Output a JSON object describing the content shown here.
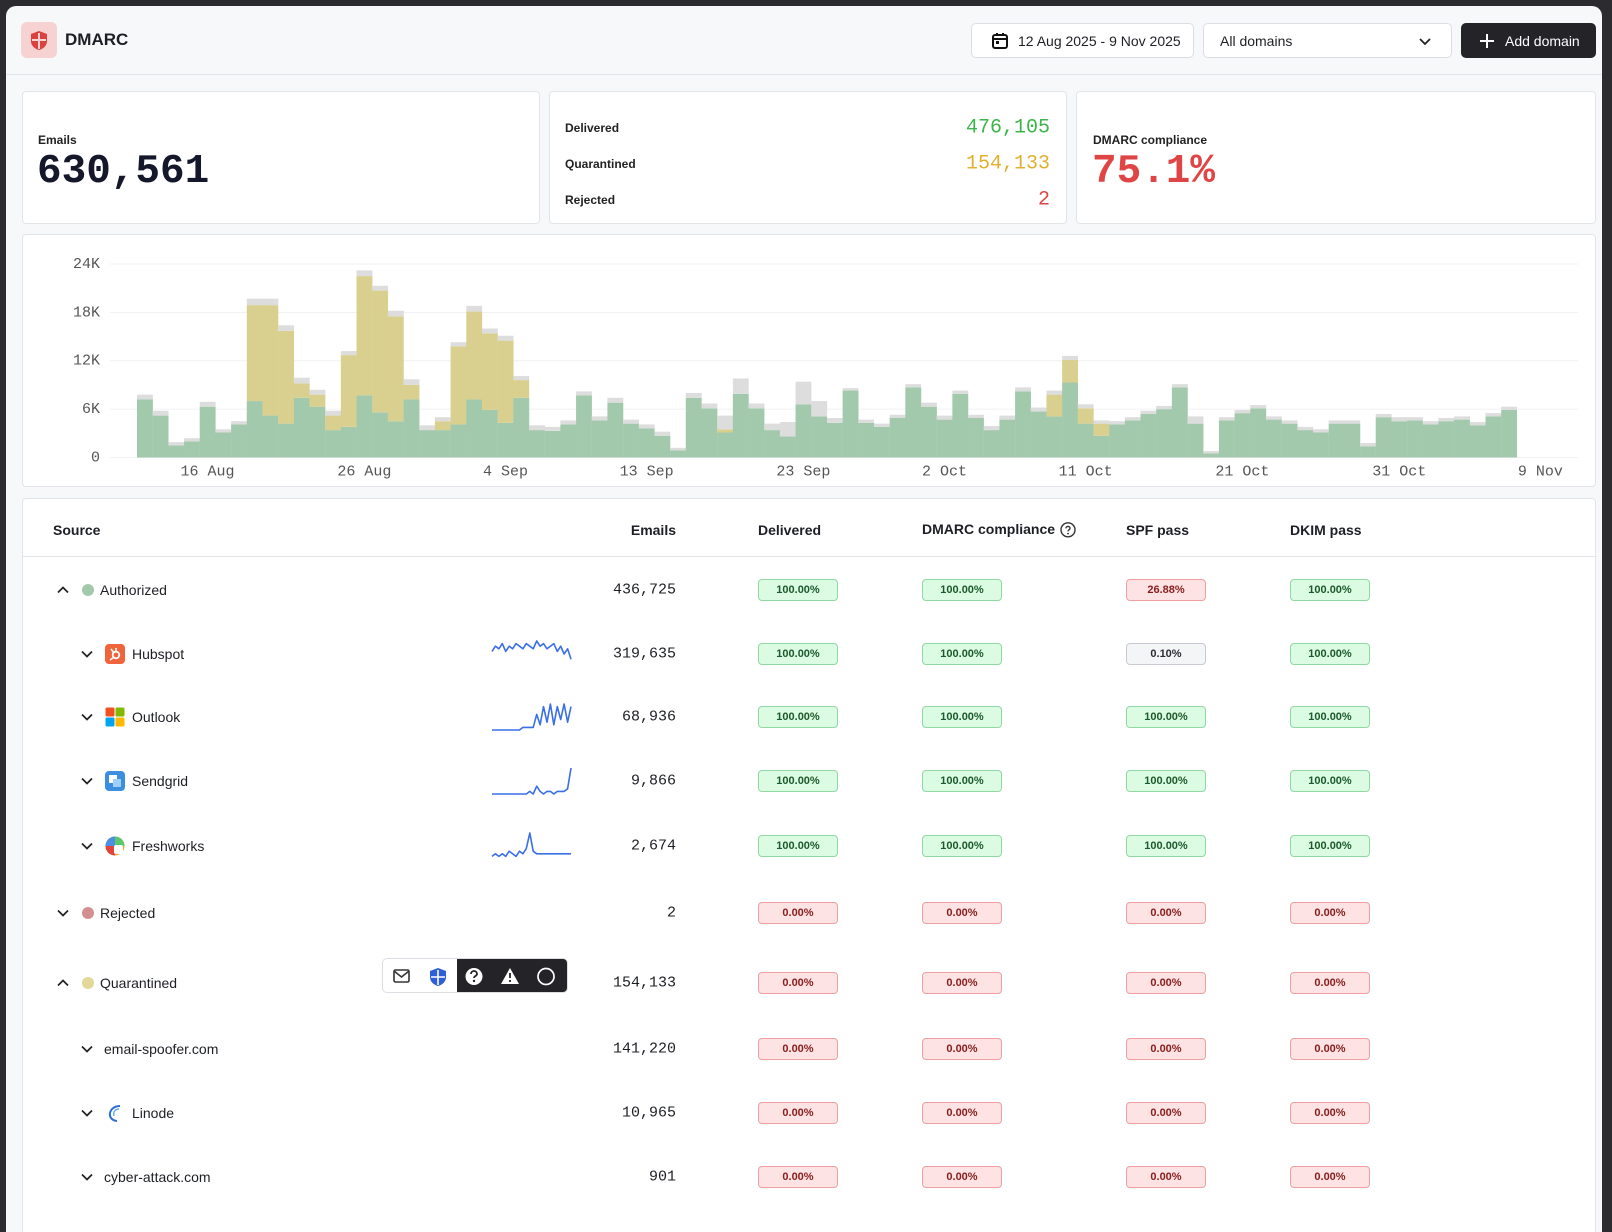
{
  "header": {
    "title": "DMARC",
    "date_range": "12 Aug 2025 - 9 Nov 2025",
    "domain_select": "All domains",
    "add_button": "Add domain"
  },
  "stats": {
    "emails": {
      "label": "Emails",
      "value": "630,561"
    },
    "delivered": {
      "label": "Delivered",
      "value": "476,105",
      "color": "#3cb54a"
    },
    "quarantined": {
      "label": "Quarantined",
      "value": "154,133",
      "color": "#e0b030"
    },
    "rejected": {
      "label": "Rejected",
      "value": "2",
      "color": "#e04545"
    },
    "compliance": {
      "label": "DMARC compliance",
      "value": "75.1%",
      "color": "#e04545"
    }
  },
  "chart_data": {
    "type": "bar",
    "stacked": true,
    "grid": true,
    "categories": [
      null,
      null,
      null,
      null,
      "16 Aug",
      null,
      null,
      null,
      null,
      null,
      null,
      null,
      null,
      null,
      "26 Aug",
      null,
      null,
      null,
      null,
      null,
      null,
      null,
      null,
      "4 Sep",
      null,
      null,
      null,
      null,
      null,
      null,
      null,
      null,
      "13 Sep",
      null,
      null,
      null,
      null,
      null,
      null,
      null,
      null,
      null,
      "23 Sep",
      null,
      null,
      null,
      null,
      null,
      null,
      null,
      null,
      "2 Oct",
      null,
      null,
      null,
      null,
      null,
      null,
      null,
      null,
      "11 Oct",
      null,
      null,
      null,
      null,
      null,
      null,
      null,
      null,
      null,
      "21 Oct",
      null,
      null,
      null,
      null,
      null,
      null,
      null,
      null,
      null,
      "31 Oct",
      null,
      null,
      null,
      null,
      null,
      null,
      null,
      null,
      "9 Nov"
    ],
    "series": [
      {
        "color": "#a3c9ad",
        "values": [
          7200,
          5200,
          1500,
          2000,
          6300,
          3100,
          4100,
          7000,
          5200,
          4200,
          7400,
          6300,
          3400,
          3800,
          7700,
          5600,
          4500,
          7200,
          3400,
          3400,
          4100,
          7200,
          5900,
          4300,
          7400,
          3400,
          3300,
          4100,
          7700,
          4600,
          6800,
          4200,
          3600,
          2700,
          900,
          7400,
          6100,
          3100,
          7900,
          6100,
          3400,
          2600,
          6600,
          5100,
          4300,
          8300,
          4300,
          3800,
          4900,
          8700,
          6300,
          4700,
          7900,
          4900,
          3400,
          4700,
          8200,
          5700,
          5100,
          9300,
          4200,
          2700,
          4100,
          4600,
          5400,
          6000,
          8700,
          4200,
          500,
          4600,
          5500,
          6100,
          4700,
          4200,
          3400,
          3100,
          4200,
          4200,
          1400,
          5000,
          4500,
          4600,
          4100,
          4500,
          4700,
          4000,
          5100,
          5900,
          null,
          null
        ]
      },
      {
        "color": "#d9d08f",
        "values": [
          0,
          0,
          0,
          0,
          0,
          0,
          0,
          11900,
          13700,
          11500,
          1800,
          1500,
          1800,
          8900,
          14800,
          15100,
          13000,
          1800,
          0,
          1100,
          9700,
          10900,
          9500,
          10200,
          2200,
          0,
          0,
          0,
          0,
          0,
          0,
          0,
          0,
          0,
          0,
          0,
          0,
          400,
          0,
          0,
          0,
          0,
          0,
          0,
          0,
          0,
          0,
          0,
          0,
          0,
          0,
          0,
          0,
          0,
          0,
          0,
          0,
          0,
          2700,
          2800,
          1900,
          1500,
          0,
          0,
          0,
          0,
          0,
          0,
          0,
          0,
          0,
          0,
          0,
          0,
          0,
          0,
          0,
          0,
          0,
          0,
          0,
          0,
          0,
          0,
          0,
          0,
          0,
          0,
          null,
          null
        ]
      },
      {
        "color": "#dddddd",
        "values": [
          600,
          600,
          400,
          400,
          600,
          400,
          400,
          800,
          800,
          700,
          700,
          600,
          600,
          500,
          700,
          600,
          700,
          700,
          600,
          500,
          500,
          700,
          600,
          600,
          500,
          600,
          500,
          500,
          500,
          500,
          600,
          500,
          500,
          500,
          300,
          600,
          600,
          1700,
          1900,
          600,
          800,
          1800,
          2800,
          1900,
          600,
          300,
          400,
          400,
          400,
          400,
          500,
          500,
          400,
          400,
          500,
          500,
          500,
          500,
          500,
          500,
          500,
          400,
          400,
          400,
          400,
          400,
          400,
          900,
          300,
          400,
          400,
          400,
          400,
          400,
          400,
          400,
          400,
          400,
          400,
          400,
          500,
          400,
          400,
          400,
          400,
          400,
          400,
          400,
          null,
          null
        ]
      }
    ],
    "ylim": [
      0,
      24000
    ],
    "yticks": [
      0,
      {
        "value": 6000,
        "label": "6K"
      },
      {
        "value": 12000,
        "label": "12K"
      },
      {
        "value": 18000,
        "label": "18K"
      },
      {
        "value": 24000,
        "label": "24K"
      }
    ]
  },
  "table": {
    "columns": [
      "Source",
      "Emails",
      "Delivered",
      "DMARC compliance",
      "SPF pass",
      "DKIM pass"
    ],
    "rows": [
      {
        "name": "Authorized",
        "level": 0,
        "expanded": true,
        "dot": "#a3c9ad",
        "emails": "436,725",
        "rates": [
          "100.00%",
          "100.00%",
          "26.88%",
          "100.00%"
        ],
        "tones": [
          "pass",
          "pass",
          "fail",
          "pass"
        ]
      },
      {
        "name": "Hubspot",
        "level": 1,
        "expanded": false,
        "emails": "319,635",
        "rates": [
          "100.00%",
          "100.00%",
          "0.10%",
          "100.00%"
        ],
        "tones": [
          "pass",
          "pass",
          "neutral",
          "pass"
        ],
        "trend": [
          6,
          8,
          7,
          9,
          6,
          8,
          7,
          9,
          8,
          7,
          9,
          8,
          7,
          10,
          8,
          9,
          7,
          8,
          9,
          6,
          8,
          5,
          7,
          3
        ]
      },
      {
        "name": "Outlook",
        "level": 1,
        "expanded": false,
        "emails": "68,936",
        "rates": [
          "100.00%",
          "100.00%",
          "100.00%",
          "100.00%"
        ],
        "tones": [
          "pass",
          "pass",
          "pass",
          "pass"
        ],
        "trend": [
          0,
          0,
          0,
          0,
          0,
          0,
          0,
          0,
          0,
          1,
          1,
          1,
          1,
          6,
          2,
          9,
          3,
          10,
          2,
          9,
          4,
          10,
          3,
          9
        ]
      },
      {
        "name": "Sendgrid",
        "level": 1,
        "expanded": false,
        "emails": "9,866",
        "rates": [
          "100.00%",
          "100.00%",
          "100.00%",
          "100.00%"
        ],
        "tones": [
          "pass",
          "pass",
          "pass",
          "pass"
        ],
        "trend": [
          0,
          0,
          0,
          0,
          0,
          0,
          0,
          0,
          0,
          0,
          0,
          1,
          0,
          3,
          1,
          0,
          1,
          1,
          0,
          1,
          1,
          1,
          2,
          10
        ]
      },
      {
        "name": "Freshworks",
        "level": 1,
        "expanded": false,
        "emails": "2,674",
        "rates": [
          "100.00%",
          "100.00%",
          "100.00%",
          "100.00%"
        ],
        "tones": [
          "pass",
          "pass",
          "pass",
          "pass"
        ],
        "trend": [
          1,
          2,
          1,
          2,
          1,
          3,
          2,
          1,
          3,
          2,
          4,
          10,
          3,
          2,
          2,
          2,
          2,
          2,
          2,
          2,
          2,
          2,
          2,
          2
        ]
      },
      {
        "name": "Rejected",
        "level": 0,
        "expanded": false,
        "dot": "#d49090",
        "emails": "2",
        "rates": [
          "0.00%",
          "0.00%",
          "0.00%",
          "0.00%"
        ],
        "tones": [
          "fail",
          "fail",
          "fail",
          "fail"
        ]
      },
      {
        "name": "Quarantined",
        "level": 0,
        "expanded": true,
        "dot": "#e3d897",
        "emails": "154,133",
        "rates": [
          "0.00%",
          "0.00%",
          "0.00%",
          "0.00%"
        ],
        "tones": [
          "fail",
          "fail",
          "fail",
          "fail"
        ]
      },
      {
        "name": "email-spoofer.com",
        "level": 1,
        "expanded": false,
        "emails": "141,220",
        "rates": [
          "0.00%",
          "0.00%",
          "0.00%",
          "0.00%"
        ],
        "tones": [
          "fail",
          "fail",
          "fail",
          "fail"
        ]
      },
      {
        "name": "Linode",
        "level": 1,
        "expanded": false,
        "emails": "10,965",
        "rates": [
          "0.00%",
          "0.00%",
          "0.00%",
          "0.00%"
        ],
        "tones": [
          "fail",
          "fail",
          "fail",
          "fail"
        ]
      },
      {
        "name": "cyber-attack.com",
        "level": 1,
        "expanded": false,
        "emails": "901",
        "rates": [
          "0.00%",
          "0.00%",
          "0.00%",
          "0.00%"
        ],
        "tones": [
          "fail",
          "fail",
          "fail",
          "fail"
        ]
      }
    ]
  }
}
